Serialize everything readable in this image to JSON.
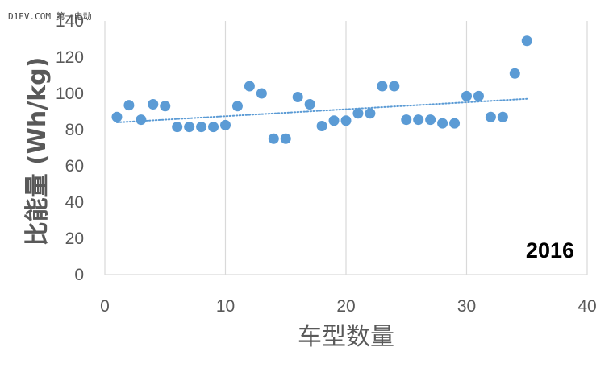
{
  "watermark": "D1EV.COM 第一电动",
  "chart_data": {
    "type": "scatter",
    "annotation": "2016",
    "xlabel": "车型数量",
    "ylabel": "比能量 (Wh/kg)",
    "xlim": [
      0,
      40
    ],
    "ylim": [
      0,
      140
    ],
    "xticks": [
      0,
      10,
      20,
      30,
      40
    ],
    "yticks": [
      0,
      20,
      40,
      60,
      80,
      100,
      120,
      140
    ],
    "grid": "vertical",
    "trendline": {
      "style": "dotted",
      "type": "linear",
      "start": [
        1,
        84
      ],
      "end": [
        35,
        97
      ]
    },
    "colors": {
      "marker": "#5B9BD5",
      "grid": "#d9d9d9",
      "text": "#595959"
    },
    "series": [
      {
        "x": [
          1,
          2,
          3,
          4,
          5,
          6,
          7,
          8,
          9,
          10,
          11,
          12,
          13,
          14,
          15,
          16,
          17,
          18,
          19,
          20,
          21,
          22,
          23,
          24,
          25,
          26,
          27,
          28,
          29,
          30,
          31,
          32,
          33,
          34,
          35
        ],
        "y": [
          87,
          93.5,
          85.5,
          94,
          93,
          81.5,
          81.5,
          81.5,
          81.5,
          82.5,
          93,
          104,
          100,
          75,
          75,
          98,
          94,
          82,
          85,
          85,
          89,
          89,
          104,
          104,
          85.5,
          85.5,
          85.5,
          83.5,
          83.5,
          98.5,
          98.5,
          87,
          87,
          111,
          129
        ]
      }
    ]
  }
}
